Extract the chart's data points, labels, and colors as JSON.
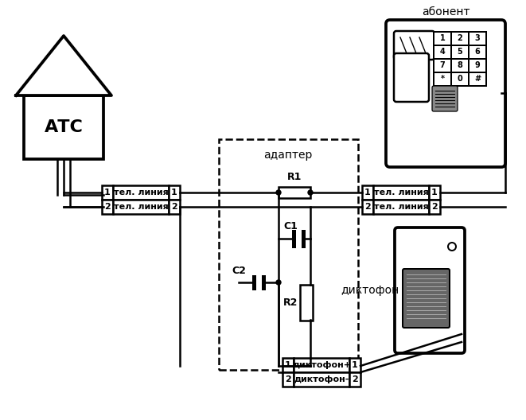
{
  "title": "",
  "background_color": "#ffffff",
  "line_color": "#000000",
  "text_color": "#000000",
  "abonent_label": "абонент",
  "atc_label": "АТС",
  "adapter_label": "адаптер",
  "dictophone_label": "диктофон",
  "r1_label": "R1",
  "r2_label": "R2",
  "c1_label": "C1",
  "c2_label": "C2",
  "tel_line_label": "тел. линия",
  "dictophone_plus_label": "диктофон+",
  "dictophone_minus_label": "диктофон-",
  "figsize": [
    6.61,
    5.28
  ],
  "dpi": 100
}
